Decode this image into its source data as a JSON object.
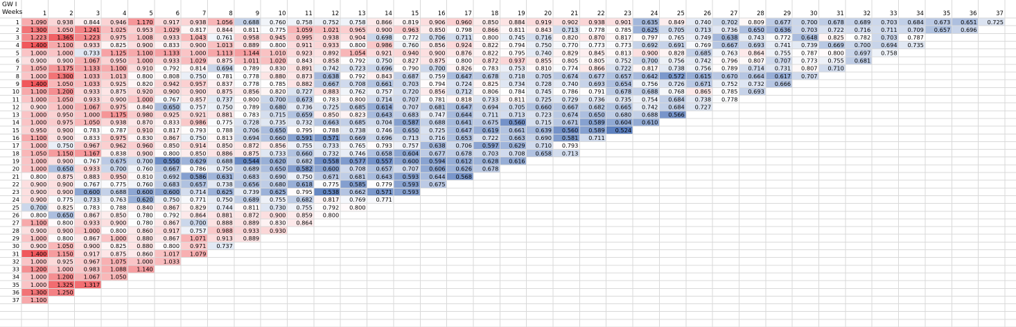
{
  "sheet": {
    "title_label": "GW I",
    "row_header_label": "Weeks",
    "column_headers": [
      "1",
      "2",
      "3",
      "4",
      "5",
      "6",
      "7",
      "8",
      "9",
      "10",
      "11",
      "12",
      "13",
      "14",
      "15",
      "16",
      "17",
      "18",
      "19",
      "20",
      "21",
      "22",
      "23",
      "24",
      "25",
      "26",
      "27",
      "28",
      "29",
      "30",
      "31",
      "32",
      "33",
      "34",
      "35",
      "36",
      "37"
    ],
    "row_labels": [
      "1",
      "2",
      "3",
      "4",
      "5",
      "6",
      "7",
      "8",
      "9",
      "10",
      "11",
      "12",
      "13",
      "14",
      "15",
      "16",
      "17",
      "18",
      "19",
      "20",
      "21",
      "22",
      "23",
      "24",
      "25",
      "26",
      "27",
      "28",
      "29",
      "30",
      "31",
      "32",
      "33",
      "34",
      "35",
      "36",
      "37"
    ],
    "color_scale": {
      "low": "#5b7fbf",
      "mid": "#ffffff",
      "high": "#f0585c"
    }
  },
  "chart_data": {
    "type": "heatmap",
    "x": [
      "1",
      "2",
      "3",
      "4",
      "5",
      "6",
      "7",
      "8",
      "9",
      "10",
      "11",
      "12",
      "13",
      "14",
      "15",
      "16",
      "17",
      "18",
      "19",
      "20",
      "21",
      "22",
      "23",
      "24",
      "25",
      "26",
      "27",
      "28",
      "29",
      "30",
      "31",
      "32",
      "33",
      "34",
      "35",
      "36",
      "37"
    ],
    "y": [
      "1",
      "2",
      "3",
      "4",
      "5",
      "6",
      "7",
      "8",
      "9",
      "10",
      "11",
      "12",
      "13",
      "14",
      "15",
      "16",
      "17",
      "18",
      "19",
      "20",
      "21",
      "22",
      "23",
      "24",
      "25",
      "26",
      "27",
      "28",
      "29",
      "30",
      "31",
      "32",
      "33",
      "34",
      "35",
      "36",
      "37"
    ],
    "rows": [
      [
        "1.090",
        "0.938",
        "0.844",
        "0.946",
        "1.170",
        "0.917",
        "0.938",
        "1.056",
        "0.688",
        "0.760",
        "0.758",
        "0.752",
        "0.758",
        "0.866",
        "0.819",
        "0.906",
        "0.960",
        "0.850",
        "0.884",
        "0.919",
        "0.902",
        "0.938",
        "0.901",
        "0.635",
        "0.849",
        "0.740",
        "0.702",
        "0.809",
        "0.677",
        "0.700",
        "0.678",
        "0.689",
        "0.703",
        "0.684",
        "0.673",
        "0.651",
        "0.725"
      ],
      [
        "1.300",
        "1.050",
        "1.241",
        "1.025",
        "0.953",
        "1.029",
        "0.817",
        "0.844",
        "0.811",
        "0.775",
        "1.059",
        "1.021",
        "0.965",
        "0.900",
        "0.963",
        "0.850",
        "0.798",
        "0.866",
        "0.811",
        "0.843",
        "0.713",
        "0.778",
        "0.785",
        "0.625",
        "0.705",
        "0.713",
        "0.736",
        "0.650",
        "0.636",
        "0.703",
        "0.722",
        "0.716",
        "0.711",
        "0.709",
        "0.657",
        "0.696"
      ],
      [
        "1.223",
        "1.365",
        "1.223",
        "0.975",
        "1.008",
        "0.933",
        "1.043",
        "0.761",
        "0.958",
        "0.945",
        "0.995",
        "0.938",
        "0.904",
        "0.698",
        "0.772",
        "0.706",
        "0.711",
        "0.800",
        "0.745",
        "0.716",
        "0.820",
        "0.870",
        "0.817",
        "0.797",
        "0.765",
        "0.749",
        "0.638",
        "0.743",
        "0.772",
        "0.648",
        "0.825",
        "0.782",
        "0.703",
        "0.787"
      ],
      [
        "1.400",
        "1.100",
        "0.933",
        "0.825",
        "0.900",
        "0.833",
        "0.900",
        "1.013",
        "0.889",
        "0.800",
        "0.911",
        "0.933",
        "0.800",
        "0.986",
        "0.760",
        "0.856",
        "0.924",
        "0.822",
        "0.794",
        "0.750",
        "0.770",
        "0.773",
        "0.773",
        "0.692",
        "0.691",
        "0.769",
        "0.667",
        "0.693",
        "0.741",
        "0.739",
        "0.669",
        "0.700",
        "0.694",
        "0.735"
      ],
      [
        "1.000",
        "1.000",
        "0.733",
        "1.125",
        "1.100",
        "1.133",
        "1.000",
        "1.113",
        "1.144",
        "1.010",
        "0.923",
        "0.892",
        "1.054",
        "0.921",
        "0.940",
        "0.900",
        "0.876",
        "0.822",
        "0.795",
        "0.740",
        "0.829",
        "0.845",
        "0.813",
        "0.900",
        "0.828",
        "0.685",
        "0.763",
        "0.864",
        "0.755",
        "0.787",
        "0.800",
        "0.697",
        "0.758"
      ],
      [
        "0.900",
        "0.900",
        "1.067",
        "0.950",
        "1.000",
        "0.933",
        "1.029",
        "0.875",
        "1.011",
        "1.020",
        "0.843",
        "0.858",
        "0.792",
        "0.750",
        "0.827",
        "0.875",
        "0.800",
        "0.872",
        "0.937",
        "0.855",
        "0.805",
        "0.805",
        "0.752",
        "0.700",
        "0.756",
        "0.742",
        "0.796",
        "0.807",
        "0.707",
        "0.773",
        "0.755",
        "0.681"
      ],
      [
        "1.050",
        "1.175",
        "1.133",
        "1.100",
        "0.910",
        "0.792",
        "0.814",
        "0.694",
        "0.789",
        "0.830",
        "0.891",
        "0.742",
        "0.723",
        "0.696",
        "0.790",
        "0.700",
        "0.826",
        "0.783",
        "0.753",
        "0.810",
        "0.774",
        "0.866",
        "0.722",
        "0.817",
        "0.738",
        "0.756",
        "0.789",
        "0.714",
        "0.731",
        "0.807",
        "0.710"
      ],
      [
        "1.000",
        "1.300",
        "1.033",
        "1.013",
        "0.800",
        "0.808",
        "0.750",
        "0.781",
        "0.778",
        "0.880",
        "0.873",
        "0.638",
        "0.792",
        "0.843",
        "0.687",
        "0.759",
        "0.647",
        "0.678",
        "0.718",
        "0.705",
        "0.674",
        "0.677",
        "0.657",
        "0.642",
        "0.572",
        "0.615",
        "0.670",
        "0.664",
        "0.617",
        "0.707"
      ],
      [
        "1.400",
        "1.050",
        "1.033",
        "0.925",
        "0.820",
        "0.942",
        "0.957",
        "0.837",
        "0.778",
        "0.785",
        "0.882",
        "0.667",
        "0.708",
        "0.661",
        "0.703",
        "0.794",
        "0.724",
        "0.825",
        "0.734",
        "0.728",
        "0.740",
        "0.693",
        "0.654",
        "0.756",
        "0.726",
        "0.671",
        "0.752",
        "0.732",
        "0.666"
      ],
      [
        "1.100",
        "1.200",
        "0.933",
        "0.875",
        "0.920",
        "0.900",
        "0.900",
        "0.875",
        "0.856",
        "0.820",
        "0.727",
        "0.883",
        "0.762",
        "0.757",
        "0.720",
        "0.856",
        "0.712",
        "0.806",
        "0.784",
        "0.745",
        "0.786",
        "0.791",
        "0.678",
        "0.688",
        "0.768",
        "0.865",
        "0.785",
        "0.693"
      ],
      [
        "1.000",
        "1.050",
        "0.933",
        "0.900",
        "1.000",
        "0.767",
        "0.857",
        "0.737",
        "0.800",
        "0.700",
        "0.673",
        "0.783",
        "0.800",
        "0.714",
        "0.707",
        "0.781",
        "0.818",
        "0.733",
        "0.811",
        "0.725",
        "0.729",
        "0.736",
        "0.735",
        "0.754",
        "0.684",
        "0.738",
        "0.778"
      ],
      [
        "0.900",
        "1.000",
        "1.067",
        "0.975",
        "0.840",
        "0.650",
        "0.757",
        "0.750",
        "0.789",
        "0.680",
        "0.736",
        "0.725",
        "0.685",
        "0.614",
        "0.707",
        "0.681",
        "0.647",
        "0.694",
        "0.705",
        "0.660",
        "0.667",
        "0.682",
        "0.665",
        "0.742",
        "0.684",
        "0.727"
      ],
      [
        "1.000",
        "0.950",
        "1.000",
        "1.175",
        "0.980",
        "0.925",
        "0.921",
        "0.881",
        "0.783",
        "0.715",
        "0.659",
        "0.850",
        "0.823",
        "0.643",
        "0.683",
        "0.747",
        "0.644",
        "0.711",
        "0.713",
        "0.723",
        "0.674",
        "0.650",
        "0.680",
        "0.688",
        "0.566"
      ],
      [
        "1.000",
        "0.975",
        "1.050",
        "0.938",
        "0.870",
        "0.833",
        "0.986",
        "0.775",
        "0.728",
        "0.735",
        "0.732",
        "0.663",
        "0.685",
        "0.704",
        "0.587",
        "0.688",
        "0.641",
        "0.675",
        "0.560",
        "0.715",
        "0.671",
        "0.589",
        "0.604",
        "0.610"
      ],
      [
        "0.950",
        "0.900",
        "0.783",
        "0.787",
        "0.910",
        "0.817",
        "0.793",
        "0.788",
        "0.706",
        "0.650",
        "0.795",
        "0.788",
        "0.738",
        "0.746",
        "0.650",
        "0.725",
        "0.647",
        "0.619",
        "0.661",
        "0.639",
        "0.560",
        "0.589",
        "0.524"
      ],
      [
        "1.100",
        "0.900",
        "0.833",
        "0.975",
        "0.830",
        "0.867",
        "0.750",
        "0.813",
        "0.694",
        "0.660",
        "0.591",
        "0.571",
        "0.669",
        "0.696",
        "0.713",
        "0.716",
        "0.653",
        "0.722",
        "0.663",
        "0.690",
        "0.581",
        "0.711"
      ],
      [
        "1.000",
        "0.750",
        "0.967",
        "0.962",
        "0.960",
        "0.850",
        "0.914",
        "0.850",
        "0.872",
        "0.856",
        "0.755",
        "0.733",
        "0.765",
        "0.793",
        "0.757",
        "0.638",
        "0.706",
        "0.597",
        "0.629",
        "0.710",
        "0.793"
      ],
      [
        "1.050",
        "1.150",
        "1.167",
        "0.838",
        "0.900",
        "0.800",
        "0.850",
        "0.886",
        "0.875",
        "0.733",
        "0.660",
        "0.732",
        "0.746",
        "0.658",
        "0.604",
        "0.677",
        "0.678",
        "0.703",
        "0.708",
        "0.658",
        "0.713"
      ],
      [
        "1.000",
        "0.900",
        "0.767",
        "0.675",
        "0.700",
        "0.550",
        "0.629",
        "0.688",
        "0.544",
        "0.620",
        "0.682",
        "0.558",
        "0.577",
        "0.557",
        "0.600",
        "0.594",
        "0.612",
        "0.628",
        "0.616"
      ],
      [
        "1.000",
        "0.650",
        "0.933",
        "0.700",
        "0.760",
        "0.667",
        "0.786",
        "0.750",
        "0.689",
        "0.650",
        "0.582",
        "0.600",
        "0.708",
        "0.657",
        "0.707",
        "0.606",
        "0.626",
        "0.678"
      ],
      [
        "0.800",
        "0.875",
        "0.883",
        "0.950",
        "0.810",
        "0.692",
        "0.586",
        "0.631",
        "0.683",
        "0.690",
        "0.750",
        "0.671",
        "0.681",
        "0.643",
        "0.593",
        "0.644",
        "0.568"
      ],
      [
        "0.900",
        "0.900",
        "0.767",
        "0.775",
        "0.760",
        "0.683",
        "0.657",
        "0.738",
        "0.656",
        "0.680",
        "0.618",
        "0.775",
        "0.585",
        "0.779",
        "0.593",
        "0.675"
      ],
      [
        "0.900",
        "0.900",
        "0.600",
        "0.688",
        "0.600",
        "0.600",
        "0.714",
        "0.625",
        "0.739",
        "0.625",
        "0.795",
        "0.538",
        "0.662",
        "0.571",
        "0.593"
      ],
      [
        "0.900",
        "0.775",
        "0.733",
        "0.763",
        "0.620",
        "0.750",
        "0.771",
        "0.750",
        "0.689",
        "0.755",
        "0.682",
        "0.817",
        "0.769",
        "0.771"
      ],
      [
        "0.700",
        "0.825",
        "0.783",
        "0.788",
        "0.840",
        "0.867",
        "0.829",
        "0.744",
        "0.811",
        "0.730",
        "0.755",
        "0.792",
        "0.800"
      ],
      [
        "0.800",
        "0.650",
        "0.867",
        "0.850",
        "0.780",
        "0.792",
        "0.864",
        "0.881",
        "0.872",
        "0.900",
        "0.859",
        "0.800"
      ],
      [
        "1.100",
        "0.800",
        "0.933",
        "0.900",
        "0.780",
        "0.867",
        "0.700",
        "0.888",
        "0.889",
        "0.830",
        "0.864"
      ],
      [
        "0.900",
        "0.900",
        "1.000",
        "0.800",
        "0.860",
        "0.917",
        "0.757",
        "0.988",
        "0.933",
        "0.930"
      ],
      [
        "1.000",
        "0.800",
        "0.867",
        "1.000",
        "0.880",
        "0.867",
        "1.071",
        "0.913",
        "0.889"
      ],
      [
        "0.900",
        "1.050",
        "0.900",
        "0.825",
        "0.880",
        "0.800",
        "0.971",
        "0.737"
      ],
      [
        "1.400",
        "1.150",
        "0.917",
        "0.875",
        "0.860",
        "1.017",
        "1.079"
      ],
      [
        "1.000",
        "0.925",
        "0.967",
        "1.075",
        "1.000",
        "1.033"
      ],
      [
        "1.200",
        "1.000",
        "0.983",
        "1.088",
        "1.140"
      ],
      [
        "1.000",
        "1.200",
        "1.067",
        "1.050"
      ],
      [
        "1.000",
        "1.325",
        "1.317"
      ],
      [
        "1.300",
        "1.250"
      ],
      [
        "1.100"
      ]
    ],
    "title": "",
    "xlabel": "",
    "ylabel": "",
    "color_range": [
      0.52,
      1.4
    ]
  }
}
